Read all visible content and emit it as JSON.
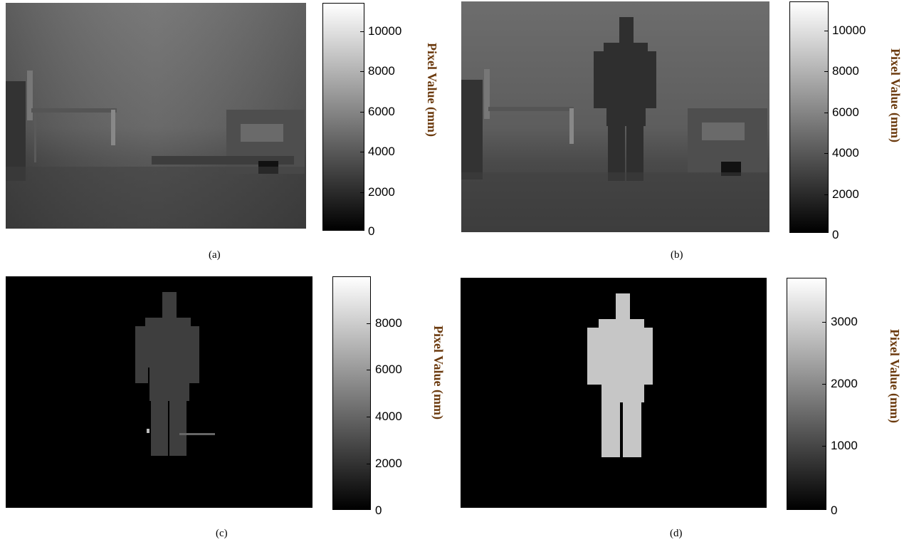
{
  "panels": [
    {
      "id": "a",
      "caption": "(a)",
      "colorbar_label": "Pixel Value (mm)",
      "ticks": [
        "10000",
        "8000",
        "6000",
        "4000",
        "2000",
        "0"
      ],
      "range": [
        0,
        11000
      ]
    },
    {
      "id": "b",
      "caption": "(b)",
      "colorbar_label": "Pixel Value (mm)",
      "ticks": [
        "10000",
        "8000",
        "6000",
        "4000",
        "2000",
        "0"
      ],
      "range": [
        0,
        11000
      ]
    },
    {
      "id": "c",
      "caption": "(c)",
      "colorbar_label": "Pixel Value (mm)",
      "ticks": [
        "8000",
        "6000",
        "4000",
        "2000",
        "0"
      ],
      "range": [
        0,
        9800
      ]
    },
    {
      "id": "d",
      "caption": "(d)",
      "colorbar_label": "Pixel Value (mm)",
      "ticks": [
        "3000",
        "2000",
        "1000",
        "0"
      ],
      "range": [
        0,
        3600
      ]
    }
  ],
  "icons": {
    "depth_image": "depth-map-image",
    "colorbar": "grayscale-colorbar"
  },
  "colors": {
    "colorbar_label": "#6b3a0e",
    "background": "#ffffff"
  }
}
